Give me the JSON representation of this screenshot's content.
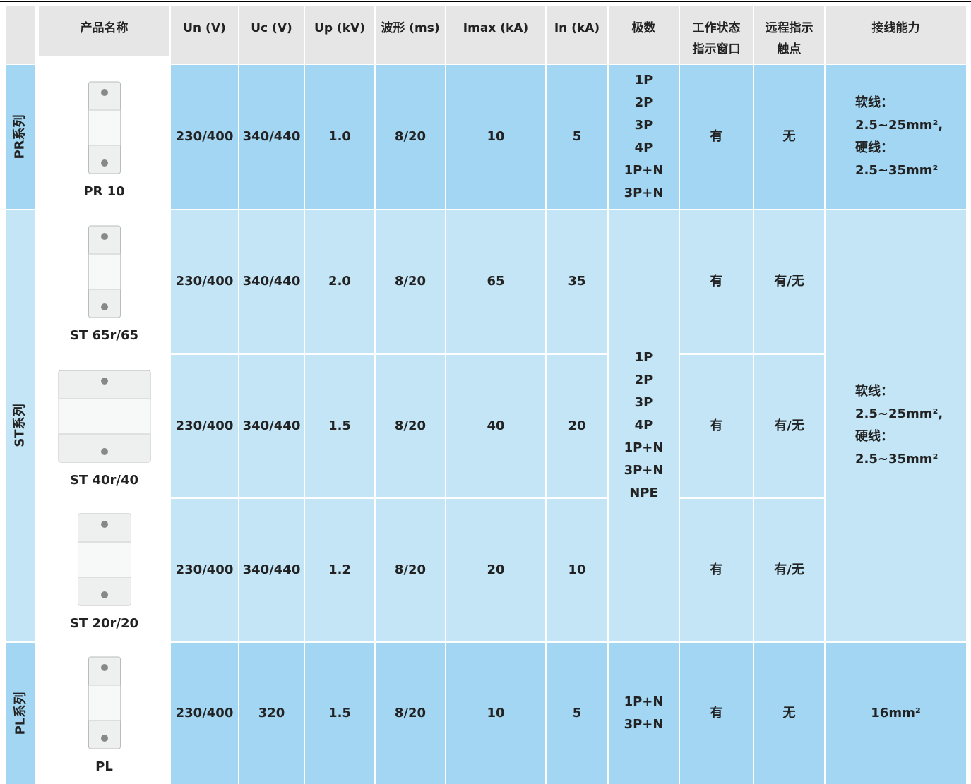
{
  "header": [
    "产品名称",
    "Un (V)",
    "Uc (V)",
    "Up (kV)",
    "波形 (ms)",
    "Imax (kA)",
    "In (kA)",
    "极数",
    "工作状态\n指示窗口",
    "远程指示\n触点",
    "接线能力"
  ],
  "groups": [
    {
      "label": "PR系列",
      "poles": [
        "1P",
        "2P",
        "3P",
        "4P",
        "1P+N",
        "3P+N"
      ],
      "wiring": [
        "软线：",
        "2.5~25mm²,",
        "硬线：",
        "2.5~35mm²"
      ],
      "rows": [
        {
          "product": "PR 10",
          "un": "230/400",
          "uc": "340/440",
          "up": "1.0",
          "wave": "8/20",
          "imax": "10",
          "in": "5",
          "status": "有",
          "remote": "无"
        }
      ]
    },
    {
      "label": "ST系列",
      "poles": [
        "1P",
        "2P",
        "3P",
        "4P",
        "1P+N",
        "3P+N",
        "NPE"
      ],
      "wiring": [
        "软线：",
        "2.5~25mm²,",
        "硬线：",
        "2.5~35mm²"
      ],
      "rows": [
        {
          "product": "ST 65r/65",
          "un": "230/400",
          "uc": "340/440",
          "up": "2.0",
          "wave": "8/20",
          "imax": "65",
          "in": "35",
          "status": "有",
          "remote": "有/无"
        },
        {
          "product": "ST 40r/40",
          "un": "230/400",
          "uc": "340/440",
          "up": "1.5",
          "wave": "8/20",
          "imax": "40",
          "in": "20",
          "status": "有",
          "remote": "有/无"
        },
        {
          "product": "ST 20r/20",
          "un": "230/400",
          "uc": "340/440",
          "up": "1.2",
          "wave": "8/20",
          "imax": "20",
          "in": "10",
          "status": "有",
          "remote": "有/无"
        }
      ]
    },
    {
      "label": "PL系列",
      "poles": [
        "1P+N",
        "3P+N"
      ],
      "wiring": [
        "16mm²"
      ],
      "rows": [
        {
          "product": "PL",
          "un": "230/400",
          "uc": "320",
          "up": "1.5",
          "wave": "8/20",
          "imax": "10",
          "in": "5",
          "status": "有",
          "remote": "无"
        }
      ]
    }
  ]
}
